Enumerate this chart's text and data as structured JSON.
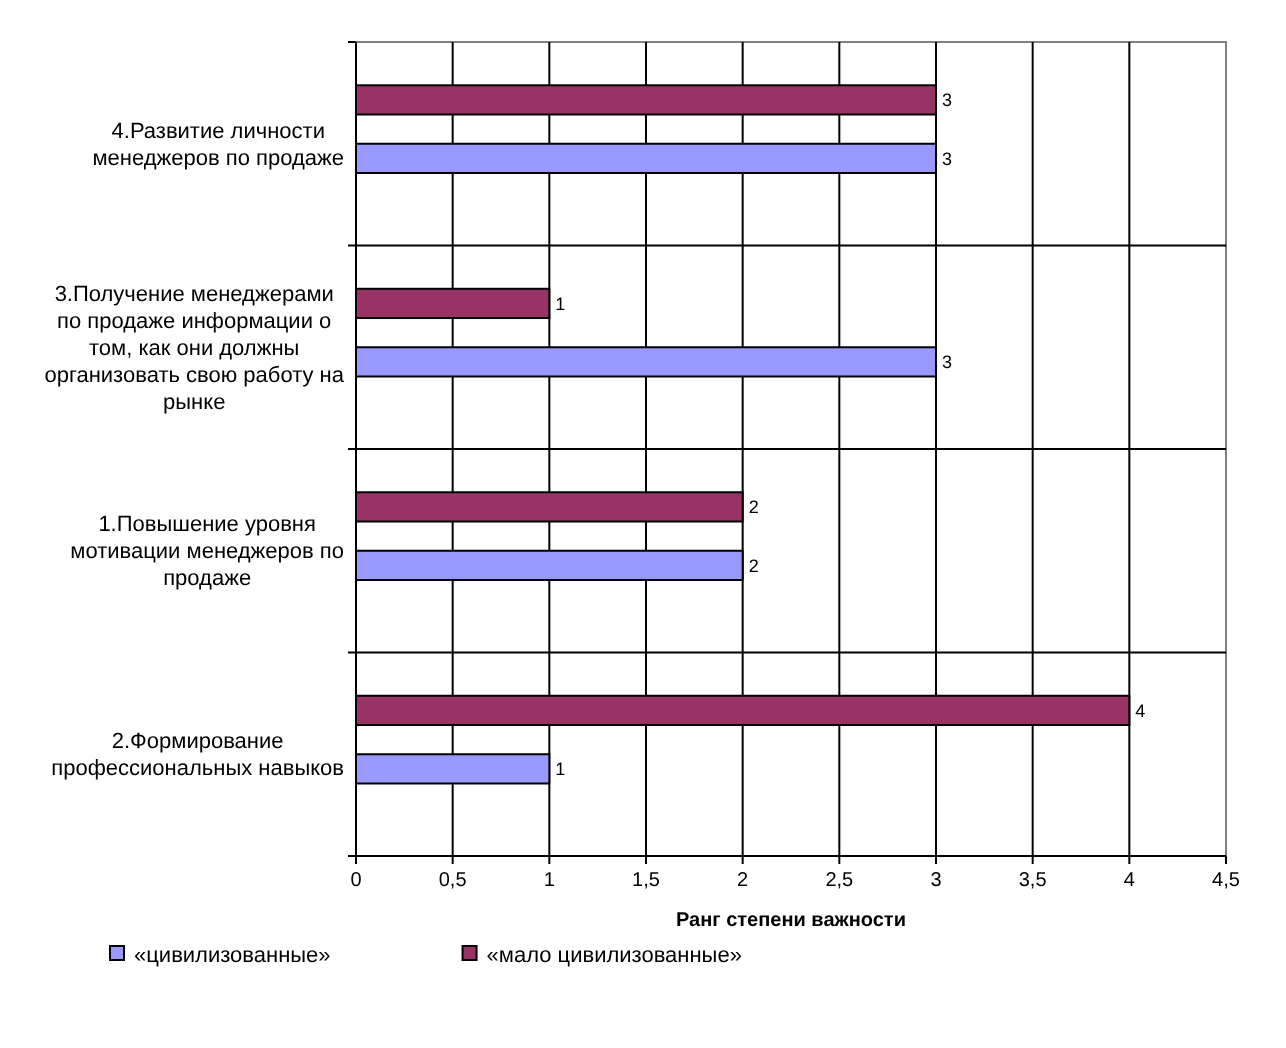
{
  "chart_data": {
    "type": "bar",
    "orientation": "horizontal",
    "categories": [
      "4.Развитие личности менеджеров по продаже",
      "3.Получение менеджерами по продаже информации о том, как они должны организовать свою работу на рынке",
      "1.Повышение уровня мотивации менеджеров по продаже",
      "2.Формирование профессиональных навыков"
    ],
    "series": [
      {
        "name": "«цивилизованные»",
        "color": "#9999ff",
        "values": [
          3,
          3,
          2,
          1
        ]
      },
      {
        "name": "«мало цивилизованные»",
        "color": "#993366",
        "values": [
          3,
          1,
          2,
          4
        ]
      }
    ],
    "xlabel": "Ранг степени важности",
    "xlim": [
      0,
      4.5
    ],
    "xticks": [
      0,
      {
        "value": 0.5,
        "label": "0,5"
      },
      1,
      {
        "value": 1.5,
        "label": "1,5"
      },
      2,
      {
        "value": 2.5,
        "label": "2,5"
      },
      3,
      {
        "value": 3.5,
        "label": "3,5"
      },
      4,
      {
        "value": 4.5,
        "label": "4,5"
      }
    ],
    "grid": true,
    "data_labels": true,
    "legend": "bottom"
  }
}
